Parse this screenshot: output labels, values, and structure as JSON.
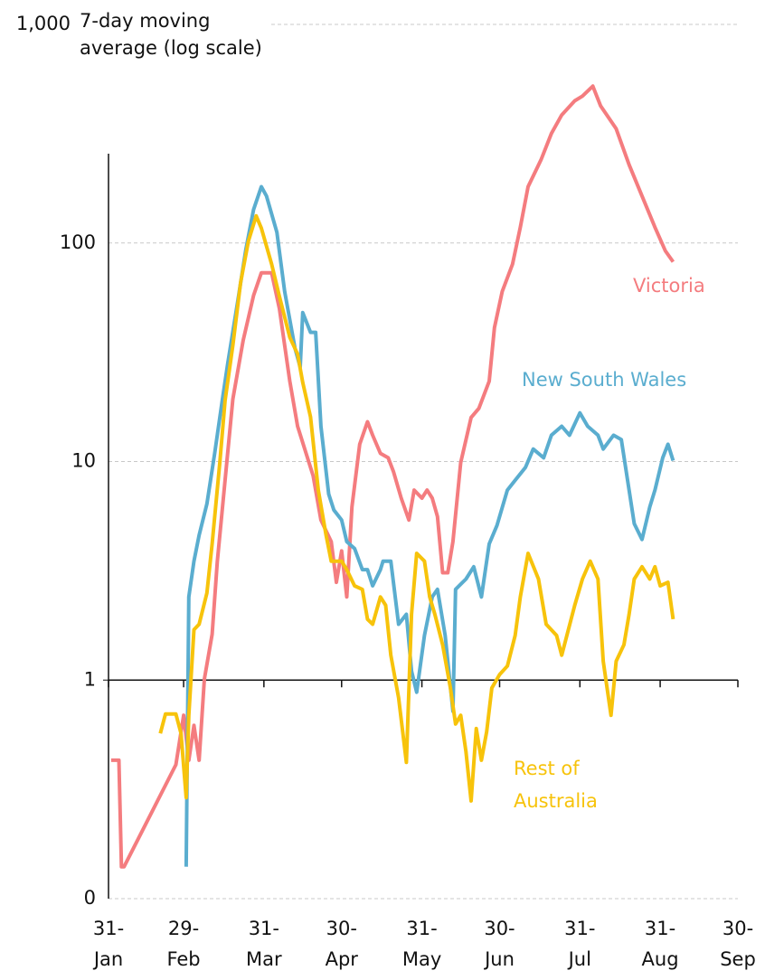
{
  "chart_data": {
    "type": "line",
    "y_label": "7-day moving average (log scale)",
    "y_scale": "log",
    "ylim": [
      0.1,
      1000
    ],
    "yticks": [
      {
        "value": 0.1,
        "label": "0"
      },
      1,
      10,
      100,
      {
        "value": 1000,
        "label": "1,000"
      }
    ],
    "x_axis_crossing": 1,
    "xlim": [
      0,
      243
    ],
    "xticks": [
      {
        "value": 0,
        "label": "31-\nJan"
      },
      {
        "value": 29,
        "label": "29-\nFeb"
      },
      {
        "value": 60,
        "label": "31-\nMar"
      },
      {
        "value": 90,
        "label": "30-\nApr"
      },
      {
        "value": 121,
        "label": "31-\nMay"
      },
      {
        "value": 151,
        "label": "30-\nJun"
      },
      {
        "value": 182,
        "label": "31-\nJul"
      },
      {
        "value": 213,
        "label": "31-\nAug"
      },
      {
        "value": 243,
        "label": "30-\nSep"
      }
    ],
    "grid": true,
    "series": [
      {
        "name": "Victoria",
        "color": "#f47c7f",
        "x": [
          1,
          4,
          5,
          6,
          26,
          29,
          31,
          33,
          35,
          37,
          40,
          42,
          45,
          48,
          52,
          56,
          59,
          63,
          66,
          70,
          73,
          79,
          82,
          86,
          88,
          90,
          92,
          94,
          97,
          100,
          102,
          105,
          108,
          110,
          113,
          116,
          118,
          121,
          123,
          125,
          127,
          129,
          131,
          133,
          136,
          140,
          143,
          147,
          149,
          152,
          156,
          159,
          162,
          167,
          171,
          175,
          180,
          183,
          187,
          190,
          196,
          201,
          206,
          211,
          215,
          218
        ],
        "values": [
          0.43,
          0.43,
          0.14,
          0.14,
          0.41,
          0.69,
          0.43,
          0.62,
          0.43,
          1.01,
          1.62,
          3.48,
          8.2,
          19.3,
          35.8,
          57.5,
          73,
          73,
          50,
          23.3,
          14.5,
          8.6,
          5.4,
          4.3,
          2.8,
          3.9,
          2.4,
          6.2,
          12,
          15.2,
          13.2,
          10.9,
          10.4,
          9,
          6.8,
          5.4,
          7.4,
          6.8,
          7.4,
          6.8,
          5.6,
          3.1,
          3.1,
          4.3,
          9.9,
          15.9,
          17.5,
          23.3,
          41,
          60,
          80,
          118,
          181,
          240,
          317,
          385,
          447,
          470,
          522,
          424,
          333,
          228,
          164,
          118,
          92,
          82
        ]
      },
      {
        "name": "New South Wales",
        "color": "#5aadcf",
        "x": [
          30,
          31,
          33,
          35,
          38,
          41,
          44,
          46,
          50,
          53,
          56,
          59,
          61,
          65,
          68,
          72,
          74,
          75,
          78,
          80,
          82,
          85,
          87,
          90,
          92,
          95,
          98,
          100,
          102,
          105,
          106,
          109,
          112,
          115,
          117,
          119,
          122,
          125,
          127,
          130,
          133,
          134,
          138,
          141,
          144,
          147,
          150,
          154,
          157,
          161,
          164,
          168,
          171,
          175,
          178,
          182,
          185,
          189,
          191,
          195,
          198,
          201,
          203,
          206,
          209,
          211,
          214,
          216,
          218
        ],
        "values": [
          0.14,
          2.4,
          3.5,
          4.6,
          6.4,
          10.9,
          19.3,
          28,
          55,
          93,
          142,
          181,
          164,
          112,
          60,
          33,
          27,
          48,
          39,
          39,
          14.5,
          7.1,
          6,
          5.4,
          4.3,
          4,
          3.2,
          3.2,
          2.7,
          3.2,
          3.5,
          3.5,
          1.8,
          2,
          1.1,
          0.88,
          1.6,
          2.4,
          2.6,
          1.6,
          0.72,
          2.6,
          2.9,
          3.3,
          2.4,
          4.2,
          5.1,
          7.4,
          8.2,
          9.4,
          11.4,
          10.4,
          13.2,
          14.5,
          13.2,
          16.7,
          14.5,
          13.2,
          11.4,
          13.2,
          12.6,
          7.4,
          5.2,
          4.4,
          6.2,
          7.4,
          10.4,
          12,
          10.1
        ]
      },
      {
        "name": "Rest of Australia",
        "color": "#f7c30b",
        "x": [
          20,
          22,
          26,
          28,
          30,
          31,
          33,
          35,
          38,
          40,
          43,
          45,
          48,
          51,
          54,
          57,
          59,
          63,
          66,
          70,
          73,
          75,
          78,
          81,
          84,
          86,
          90,
          92,
          95,
          98,
          100,
          102,
          105,
          107,
          109,
          112,
          115,
          117,
          119,
          122,
          124,
          126,
          129,
          132,
          134,
          136,
          138,
          140,
          142,
          144,
          146,
          148,
          151,
          154,
          157,
          159,
          162,
          166,
          169,
          173,
          175,
          180,
          183,
          186,
          189,
          191,
          194,
          196,
          199,
          201,
          203,
          206,
          209,
          211,
          213,
          216,
          218
        ],
        "values": [
          0.57,
          0.7,
          0.7,
          0.57,
          0.29,
          0.69,
          1.7,
          1.8,
          2.5,
          4.2,
          10,
          19,
          34,
          66,
          102,
          133,
          117,
          80,
          57,
          37,
          31,
          23,
          16,
          7.4,
          4.6,
          3.5,
          3.5,
          3.2,
          2.7,
          2.6,
          1.9,
          1.8,
          2.4,
          2.2,
          1.3,
          0.83,
          0.42,
          2,
          3.8,
          3.5,
          2.4,
          2,
          1.45,
          0.92,
          0.63,
          0.69,
          0.47,
          0.28,
          0.6,
          0.43,
          0.58,
          0.92,
          1.06,
          1.16,
          1.6,
          2.4,
          3.8,
          2.9,
          1.8,
          1.6,
          1.3,
          2.2,
          2.9,
          3.5,
          2.9,
          1.22,
          0.69,
          1.22,
          1.45,
          2,
          2.9,
          3.3,
          2.9,
          3.3,
          2.7,
          2.8,
          1.9
        ]
      }
    ]
  }
}
